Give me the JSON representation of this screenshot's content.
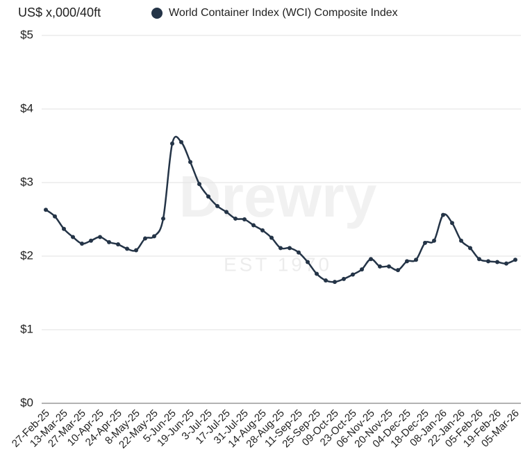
{
  "chart_data": {
    "type": "line",
    "y_axis_label": "US$ x,000/40ft",
    "watermark": "Drewry",
    "watermark_subtitle": "EST 1970",
    "categories": [
      "27-Feb-25",
      null,
      "13-Mar-25",
      null,
      "27-Mar-25",
      null,
      "10-Apr-25",
      null,
      "24-Apr-25",
      null,
      "8-May-25",
      null,
      "22-May-25",
      null,
      "5-Jun-25",
      null,
      "19-Jun-25",
      null,
      "3-Jul-25",
      null,
      "17-Jul-25",
      null,
      "31-Jul-25",
      null,
      "14-Aug-25",
      null,
      "28-Aug-25",
      null,
      "11-Sep-25",
      null,
      "25-Sep-25",
      null,
      "09-Oct-25",
      null,
      "23-Oct-25",
      null,
      "06-Nov-25",
      null,
      "20-Nov-25",
      null,
      "04-Dec-25",
      null,
      "18-Dec-25",
      null,
      "08-Jan-26",
      null,
      "22-Jan-26",
      null,
      "05-Feb-26",
      null,
      "19-Feb-26",
      null,
      "05-Mar-26"
    ],
    "series": [
      {
        "name": "World Container Index (WCI) Composite Index",
        "color": "#243447",
        "values": [
          2.63,
          2.54,
          2.37,
          2.26,
          2.17,
          2.21,
          2.26,
          2.19,
          2.16,
          2.1,
          2.08,
          2.24,
          2.27,
          2.51,
          3.53,
          3.55,
          3.28,
          2.98,
          2.81,
          2.68,
          2.6,
          2.51,
          2.5,
          2.42,
          2.35,
          2.25,
          2.11,
          2.11,
          2.05,
          1.92,
          1.76,
          1.67,
          1.65,
          1.69,
          1.75,
          1.82,
          1.96,
          1.86,
          1.86,
          1.81,
          1.93,
          1.95,
          2.18,
          2.21,
          2.56,
          2.45,
          2.21,
          2.11,
          1.96,
          1.93,
          1.92,
          1.9,
          1.95
        ]
      }
    ],
    "ylim": [
      0,
      5
    ],
    "yticks": [
      {
        "value": 0,
        "label": "$0"
      },
      {
        "value": 1,
        "label": "$1"
      },
      {
        "value": 2,
        "label": "$2"
      },
      {
        "value": 3,
        "label": "$3"
      },
      {
        "value": 4,
        "label": "$4"
      },
      {
        "value": 5,
        "label": "$5"
      }
    ],
    "grid": true,
    "legend": "top"
  }
}
